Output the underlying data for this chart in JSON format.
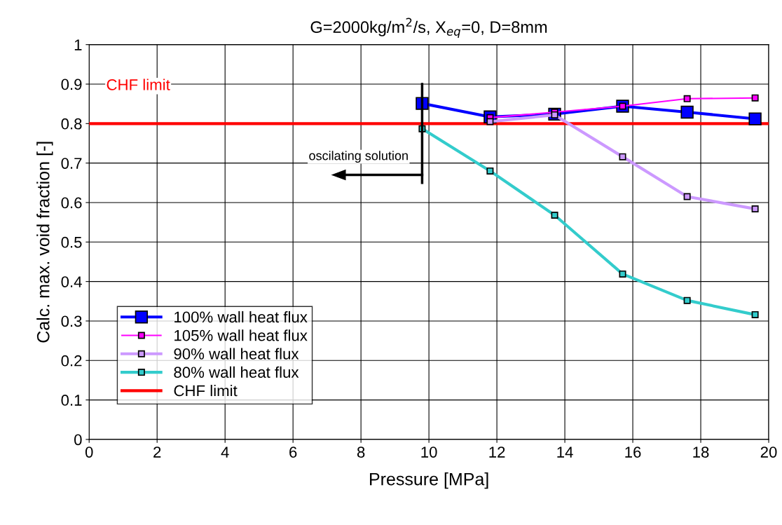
{
  "chart_data": {
    "type": "line",
    "title": "G=2000kg/m$^{2}$/s, X$_{eq}$=0, D=8mm",
    "xlabel": "Pressure [MPa]",
    "ylabel": "Calc. max. void fraction [-]",
    "xlim": [
      0,
      20
    ],
    "xticks": [
      0,
      2,
      4,
      6,
      8,
      10,
      12,
      14,
      16,
      18,
      20
    ],
    "ylim": [
      0,
      1
    ],
    "yticks": [
      0,
      {
        "value": 0.1,
        "label": "0.1"
      },
      {
        "value": 0.2,
        "label": "0.2"
      },
      {
        "value": 0.3,
        "label": "0.3"
      },
      {
        "value": 0.4,
        "label": "0.4"
      },
      {
        "value": 0.5,
        "label": "0.5"
      },
      {
        "value": 0.6,
        "label": "0.6"
      },
      {
        "value": 0.7,
        "label": "0.7"
      },
      {
        "value": 0.8,
        "label": "0.8"
      },
      {
        "value": 0.9,
        "label": "0.9"
      },
      1
    ],
    "grid": true,
    "legend": "bottom left",
    "marker": "square",
    "line_style": "solid",
    "series": [
      {
        "name": "100% wall heat flux",
        "color": "#0000ff",
        "x": [
          9.8,
          11.8,
          13.7,
          15.7,
          17.6,
          19.6
        ],
        "values": [
          0.851,
          0.817,
          0.824,
          0.844,
          0.829,
          0.812
        ]
      },
      {
        "name": "105% wall heat flux",
        "color": "#ff00ff",
        "x": [
          11.8,
          13.7,
          15.7,
          17.6,
          19.6
        ],
        "values": [
          0.815,
          0.829,
          0.844,
          0.863,
          0.865
        ]
      },
      {
        "name": "90% wall heat flux",
        "color": "#cc99ff",
        "x": [
          11.8,
          13.7,
          15.7,
          17.6,
          19.6
        ],
        "values": [
          0.805,
          0.822,
          0.716,
          0.615,
          0.584
        ]
      },
      {
        "name": "80% wall heat flux",
        "color": "#33cccc",
        "x": [
          9.8,
          11.8,
          13.7,
          15.7,
          17.6,
          19.6
        ],
        "values": [
          0.787,
          0.68,
          0.568,
          0.419,
          0.352,
          0.316
        ]
      }
    ],
    "ref_lines": [
      {
        "axis": "y",
        "value": 0.8,
        "label": "CHF limit",
        "color": "#ff0000"
      }
    ],
    "annotations": [
      "oscilating solution"
    ]
  }
}
